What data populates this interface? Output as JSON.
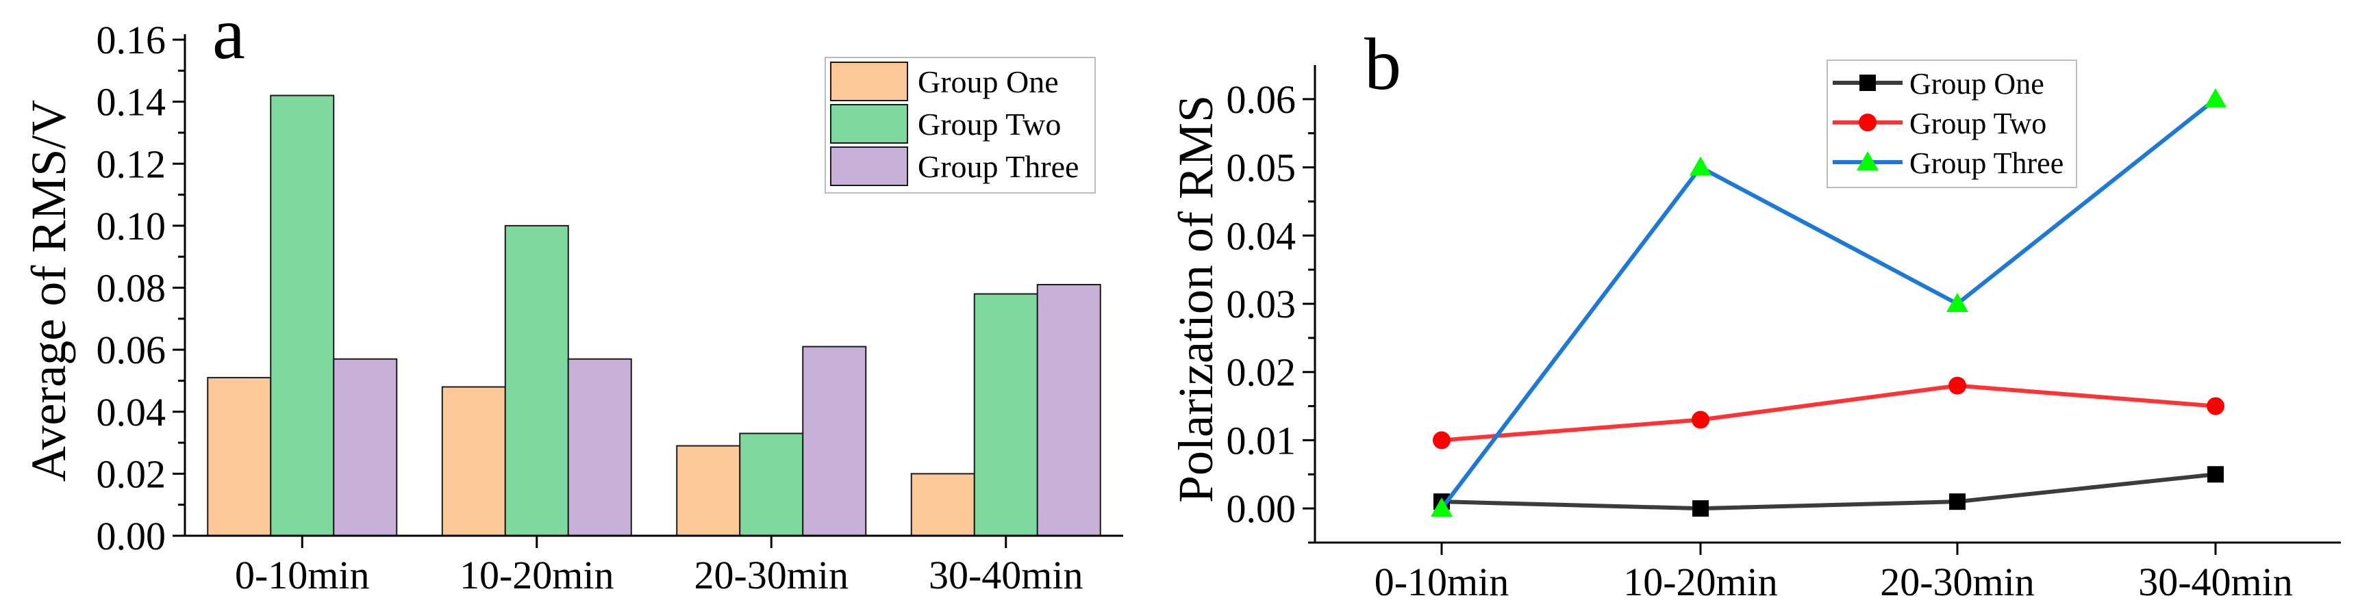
{
  "panels": {
    "a": {
      "label": "a"
    },
    "b": {
      "label": "b"
    }
  },
  "chart_data": [
    {
      "type": "bar",
      "panel": "a",
      "categories": [
        "0-10min",
        "10-20min",
        "20-30min",
        "30-40min"
      ],
      "ylabel": "Average of RMS/V",
      "xlabel": "",
      "ylim": [
        0,
        0.16
      ],
      "yticks": [
        "0.00",
        "0.02",
        "0.04",
        "0.06",
        "0.08",
        "0.10",
        "0.12",
        "0.14",
        "0.16"
      ],
      "legend": "top-right",
      "grid": false,
      "series": [
        {
          "name": "Group One",
          "color": "#FDC998",
          "values": [
            0.051,
            0.048,
            0.029,
            0.02
          ]
        },
        {
          "name": "Group Two",
          "color": "#7FD99E",
          "values": [
            0.142,
            0.1,
            0.033,
            0.078
          ]
        },
        {
          "name": "Group Three",
          "color": "#C8B1D8",
          "values": [
            0.057,
            0.057,
            0.061,
            0.081
          ]
        }
      ]
    },
    {
      "type": "line",
      "panel": "b",
      "categories": [
        "0-10min",
        "10-20min",
        "20-30min",
        "30-40min"
      ],
      "ylabel": "Polarization of RMS",
      "xlabel": "",
      "ylim": [
        -0.005,
        0.065
      ],
      "yticks": [
        "0.00",
        "0.01",
        "0.02",
        "0.03",
        "0.04",
        "0.05",
        "0.06"
      ],
      "legend": "top-center",
      "grid": false,
      "series": [
        {
          "name": "Group One",
          "color": "#3C3C3C",
          "marker_color": "#000000",
          "marker": "square",
          "values": [
            0.001,
            0.0,
            0.001,
            0.005
          ]
        },
        {
          "name": "Group Two",
          "color": "#FF3333",
          "marker_color": "#FF0000",
          "marker": "circle",
          "values": [
            0.01,
            0.013,
            0.018,
            0.015
          ]
        },
        {
          "name": "Group Three",
          "color": "#1E78D8",
          "marker_color": "#00FF00",
          "marker": "triangle",
          "values": [
            0.0,
            0.05,
            0.03,
            0.06
          ]
        }
      ]
    }
  ]
}
